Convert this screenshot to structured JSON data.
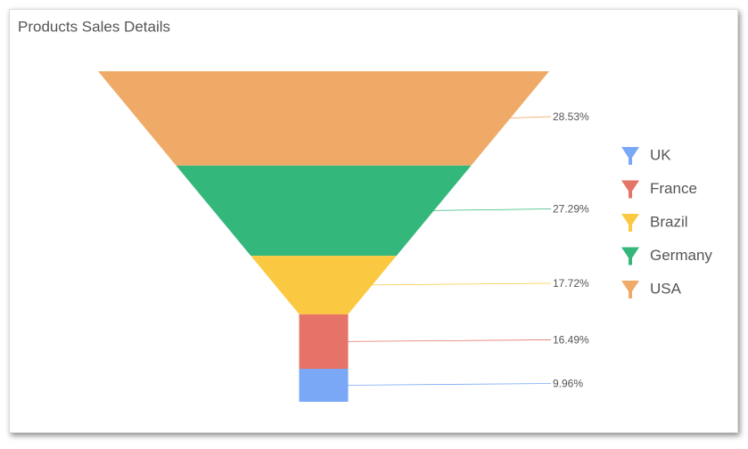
{
  "chart_data": {
    "type": "funnel",
    "title": "Products Sales Details",
    "categories": [
      "UK",
      "France",
      "Brazil",
      "Germany",
      "USA"
    ],
    "values": [
      9.96,
      16.49,
      17.72,
      27.29,
      28.53
    ],
    "value_labels": [
      "9.96%",
      "16.49%",
      "17.72%",
      "27.29%",
      "28.53%"
    ],
    "colors": [
      "#7aa8f7",
      "#e57368",
      "#fbc941",
      "#34b77b",
      "#f0aa67"
    ]
  }
}
